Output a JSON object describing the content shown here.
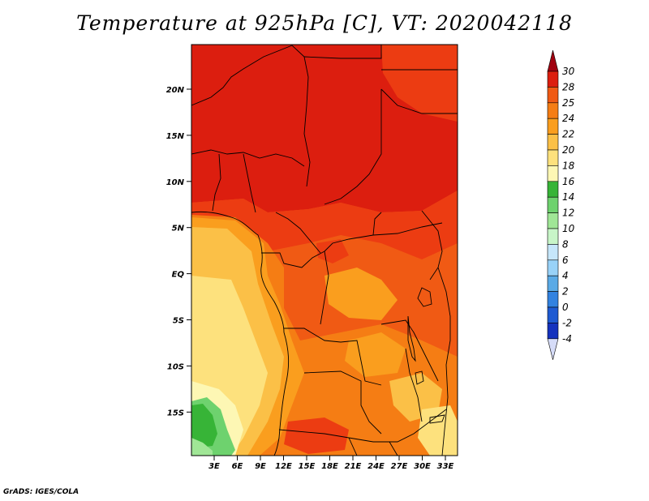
{
  "title": "Temperature at 925hPa [C], VT: 2020042118",
  "footer": "GrADS: IGES/COLA",
  "map": {
    "projection": "lat-lon",
    "variable": "Temperature at 925hPa",
    "units": "C",
    "valid_time": "2020042118",
    "lat_labels": [
      "20N",
      "15N",
      "10N",
      "5N",
      "EQ",
      "5S",
      "10S",
      "15S"
    ],
    "lon_labels": [
      "3E",
      "6E",
      "9E",
      "12E",
      "15E",
      "18E",
      "21E",
      "24E",
      "27E",
      "30E",
      "33E"
    ]
  },
  "colorbar": {
    "labels": [
      "30",
      "28",
      "25",
      "24",
      "22",
      "20",
      "18",
      "16",
      "14",
      "12",
      "10",
      "8",
      "6",
      "4",
      "2",
      "0",
      "-2",
      "-4"
    ],
    "colors": [
      "#a0000f",
      "#dc1e0f",
      "#f05a14",
      "#f57d14",
      "#fa9e1e",
      "#fbc047",
      "#fde17d",
      "#fdf7b4",
      "#37b437",
      "#6ed26e",
      "#a0e696",
      "#c8f5c8",
      "#c6e6fa",
      "#98d2f8",
      "#5aaae6",
      "#3282e0",
      "#1e5ad2",
      "#1432be",
      "#0a14a0",
      "#0a0a6e",
      "#d6dcf8"
    ]
  }
}
